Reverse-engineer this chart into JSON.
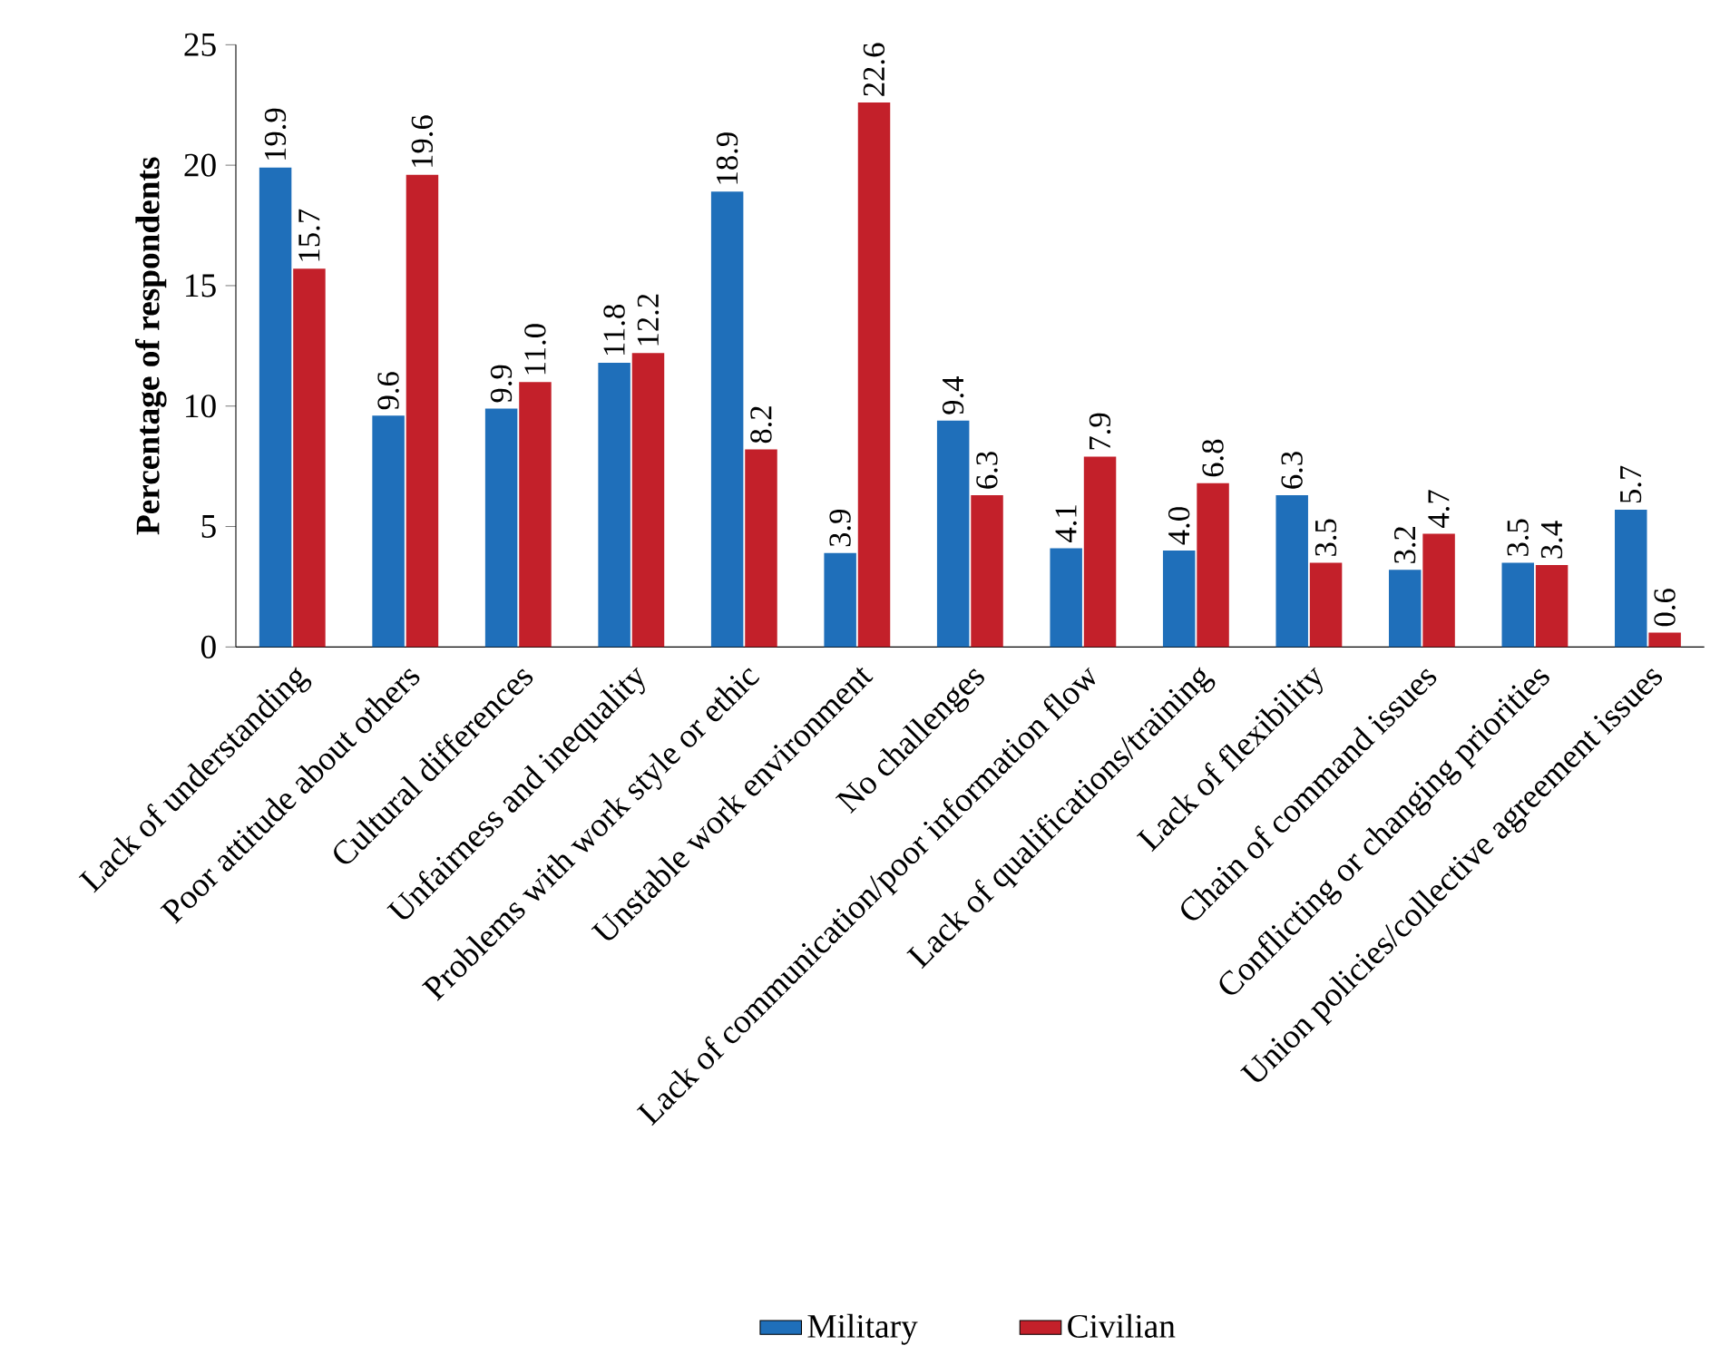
{
  "chart_data": {
    "type": "bar",
    "ylabel": "Percentage of respondents",
    "categories": [
      "Lack of understanding",
      "Poor attitude about others",
      "Cultural differences",
      "Unfairness and inequality",
      "Problems with work style or ethic",
      "Unstable work environment",
      "No challenges",
      "Lack of communication/poor information flow",
      "Lack of qualifications/training",
      "Lack of flexibility",
      "Chain of command issues",
      "Conflicting or changing priorities",
      "Union policies/collective agreement issues"
    ],
    "series": [
      {
        "name": "Military",
        "color": "#1f6fba",
        "values": [
          19.9,
          9.6,
          9.9,
          11.8,
          18.9,
          3.9,
          9.4,
          4.1,
          4.0,
          6.3,
          3.2,
          3.5,
          5.7
        ],
        "value_labels": [
          "19.9",
          "9.6",
          "9.9",
          "11.8",
          "18.9",
          "3.9",
          "9.4",
          "4.1",
          "4.0",
          "6.3",
          "3.2",
          "3.5",
          "5.7"
        ]
      },
      {
        "name": "Civilian",
        "color": "#c3202a",
        "values": [
          15.7,
          19.6,
          11.0,
          12.2,
          8.2,
          22.6,
          6.3,
          7.9,
          6.8,
          3.5,
          4.7,
          3.4,
          0.6
        ],
        "value_labels": [
          "15.7",
          "19.6",
          "11.0",
          "12.2",
          "8.2",
          "22.6",
          "6.3",
          "7.9",
          "6.8",
          "3.5",
          "4.7",
          "3.4",
          "0.6"
        ]
      }
    ],
    "ylim": [
      0,
      25
    ],
    "yticks": [
      0,
      5,
      10,
      15,
      20,
      25
    ],
    "grid": false,
    "legend": "bottom"
  }
}
